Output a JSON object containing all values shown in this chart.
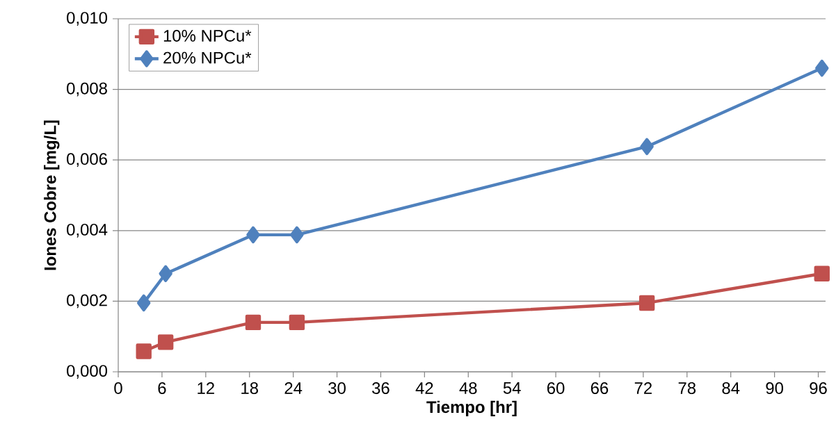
{
  "chart_data": {
    "type": "line",
    "xlabel": "Tiempo [hr]",
    "ylabel": "Iones Cobre [mg/L]",
    "x": [
      3.5,
      6.5,
      18.5,
      24.5,
      72.5,
      96.5
    ],
    "series": [
      {
        "name": "10% NPCu*",
        "color": "#c0504d",
        "marker": "square",
        "values": [
          0.00058,
          0.00084,
          0.0014,
          0.0014,
          0.00195,
          0.00278
        ]
      },
      {
        "name": "20% NPCu*",
        "color": "#4f81bd",
        "marker": "diamond",
        "values": [
          0.00195,
          0.00278,
          0.00388,
          0.00388,
          0.00638,
          0.0086
        ]
      }
    ],
    "xlim": [
      0,
      97
    ],
    "xticks": [
      0,
      6,
      12,
      18,
      24,
      30,
      36,
      42,
      48,
      54,
      60,
      66,
      72,
      78,
      84,
      90,
      96
    ],
    "ylim": [
      0,
      0.01
    ],
    "yticks": [
      {
        "value": 0,
        "label": "0,000"
      },
      {
        "value": 0.002,
        "label": "0,002"
      },
      {
        "value": 0.004,
        "label": "0,004"
      },
      {
        "value": 0.006,
        "label": "0,006"
      },
      {
        "value": 0.008,
        "label": "0,008"
      },
      {
        "value": 0.01,
        "label": "0,010"
      }
    ],
    "grid": "y",
    "legend": "top left",
    "line_style": "solid"
  }
}
